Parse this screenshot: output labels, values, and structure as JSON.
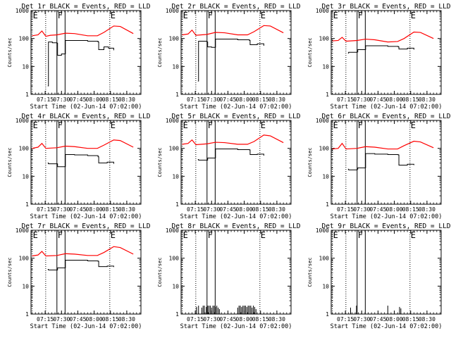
{
  "chart_data": {
    "type": "line",
    "xlabel": "Start Time (02-Jun-14 07:02:00)",
    "ylabel": "Counts/sec",
    "x_tick_labels": [
      "07:15",
      "07:30",
      "07:45",
      "08:00",
      "08:15",
      "08:30"
    ],
    "x_tick_minutes": [
      7.25,
      7.5,
      7.75,
      8.0,
      8.25,
      8.5
    ],
    "x_range_hours": [
      7.033,
      8.717
    ],
    "y_scale": "log",
    "ylim": [
      1,
      1000
    ],
    "y_tick_labels": [
      "1",
      "10",
      "100",
      "1000"
    ],
    "y_tick_values": [
      1,
      10,
      100,
      1000
    ],
    "colors": {
      "events": "#000000",
      "lld": "#ff0000",
      "axis": "#000000"
    },
    "marker_lines": [
      {
        "label": "E",
        "x": 7.05,
        "style": "dotted"
      },
      {
        "label": "",
        "x": 7.258,
        "style": "dotted"
      },
      {
        "label": "F",
        "x": 7.43,
        "style": "solid"
      },
      {
        "label": "",
        "x": 7.555,
        "style": "solid"
      },
      {
        "label": "E",
        "x": 8.24,
        "style": "dotted"
      }
    ],
    "panels": [
      {
        "title": "Det 1r BLACK = Events, RED = LLD",
        "events": {
          "x": [
            7.29,
            7.3,
            7.33,
            7.36,
            7.4,
            7.43,
            7.44,
            7.5,
            7.56,
            7.7,
            7.9,
            8.06,
            8.07,
            8.15,
            8.22,
            8.3
          ],
          "y": [
            2,
            75,
            75,
            70,
            70,
            68,
            25,
            28,
            85,
            85,
            80,
            75,
            40,
            50,
            45,
            38
          ]
        },
        "lld": {
          "x": [
            7.05,
            7.14,
            7.2,
            7.26,
            7.33,
            7.43,
            7.56,
            7.7,
            7.9,
            8.05,
            8.15,
            8.3,
            8.4,
            8.6
          ],
          "y": [
            125,
            135,
            185,
            120,
            130,
            135,
            155,
            150,
            125,
            125,
            165,
            280,
            270,
            150
          ]
        }
      },
      {
        "title": "Det 2r BLACK = Events, RED = LLD",
        "events": {
          "x": [
            7.29,
            7.3,
            7.36,
            7.43,
            7.44,
            7.5,
            7.56,
            7.7,
            7.9,
            8.08,
            8.09,
            8.2,
            8.3
          ],
          "y": [
            3,
            80,
            80,
            75,
            50,
            48,
            95,
            95,
            90,
            85,
            60,
            65,
            55
          ]
        },
        "lld": {
          "x": [
            7.05,
            7.14,
            7.2,
            7.26,
            7.43,
            7.56,
            7.7,
            7.9,
            8.05,
            8.15,
            8.3,
            8.4,
            8.6
          ],
          "y": [
            135,
            145,
            200,
            130,
            140,
            165,
            160,
            135,
            135,
            175,
            290,
            280,
            160
          ]
        }
      },
      {
        "title": "Det 3r BLACK = Events, RED = LLD",
        "events": {
          "x": [
            7.29,
            7.3,
            7.43,
            7.44,
            7.56,
            7.7,
            7.9,
            8.06,
            8.07,
            8.2,
            8.3
          ],
          "y": [
            30,
            32,
            33,
            40,
            55,
            55,
            52,
            50,
            42,
            45,
            40
          ]
        },
        "lld": {
          "x": [
            7.05,
            7.14,
            7.2,
            7.26,
            7.43,
            7.56,
            7.7,
            7.9,
            8.05,
            8.15,
            8.3,
            8.4,
            8.6
          ],
          "y": [
            82,
            85,
            110,
            80,
            85,
            95,
            90,
            75,
            78,
            100,
            170,
            165,
            100
          ]
        }
      },
      {
        "title": "Det 4r BLACK = Events, RED = LLD",
        "events": {
          "x": [
            7.29,
            7.3,
            7.43,
            7.44,
            7.56,
            7.7,
            7.9,
            8.06,
            8.07,
            8.2,
            8.3
          ],
          "y": [
            30,
            28,
            28,
            22,
            60,
            58,
            55,
            50,
            30,
            32,
            28
          ]
        },
        "lld": {
          "x": [
            7.05,
            7.14,
            7.2,
            7.26,
            7.43,
            7.56,
            7.7,
            7.9,
            8.05,
            8.15,
            8.3,
            8.4,
            8.6
          ],
          "y": [
            100,
            110,
            150,
            100,
            105,
            120,
            115,
            100,
            100,
            130,
            200,
            190,
            110
          ]
        }
      },
      {
        "title": "Det 5r BLACK = Events, RED = LLD",
        "events": {
          "x": [
            7.29,
            7.3,
            7.43,
            7.44,
            7.56,
            7.7,
            7.9,
            8.08,
            8.09,
            8.2,
            8.3
          ],
          "y": [
            40,
            38,
            38,
            45,
            95,
            95,
            90,
            88,
            60,
            62,
            55
          ]
        },
        "lld": {
          "x": [
            7.05,
            7.14,
            7.2,
            7.26,
            7.43,
            7.56,
            7.7,
            7.9,
            8.05,
            8.15,
            8.3,
            8.4,
            8.6
          ],
          "y": [
            140,
            150,
            200,
            135,
            145,
            165,
            160,
            140,
            140,
            175,
            300,
            280,
            160
          ]
        }
      },
      {
        "title": "Det 6r BLACK = Events, RED = LLD",
        "events": {
          "x": [
            7.29,
            7.3,
            7.43,
            7.44,
            7.56,
            7.7,
            7.9,
            8.06,
            8.07,
            8.2,
            8.3
          ],
          "y": [
            18,
            17,
            18,
            20,
            65,
            62,
            60,
            58,
            25,
            27,
            25
          ]
        },
        "lld": {
          "x": [
            7.05,
            7.14,
            7.2,
            7.26,
            7.43,
            7.56,
            7.7,
            7.9,
            8.05,
            8.15,
            8.3,
            8.4,
            8.6
          ],
          "y": [
            95,
            100,
            150,
            95,
            100,
            115,
            110,
            95,
            95,
            125,
            180,
            170,
            105
          ]
        }
      },
      {
        "title": "Det 7r BLACK = Events, RED = LLD",
        "events": {
          "x": [
            7.29,
            7.3,
            7.43,
            7.44,
            7.56,
            7.7,
            7.9,
            8.06,
            8.07,
            8.2,
            8.3
          ],
          "y": [
            40,
            38,
            38,
            45,
            85,
            85,
            80,
            78,
            50,
            52,
            48
          ]
        },
        "lld": {
          "x": [
            7.05,
            7.14,
            7.2,
            7.26,
            7.43,
            7.56,
            7.7,
            7.9,
            8.05,
            8.15,
            8.3,
            8.4,
            8.6
          ],
          "y": [
            120,
            130,
            175,
            120,
            125,
            145,
            140,
            125,
            125,
            160,
            260,
            240,
            140
          ]
        }
      },
      {
        "title": "Det 8r BLACK = Events, RED = LLD",
        "events_spikes": {
          "x": [
            7.27,
            7.3,
            7.35,
            7.37,
            7.39,
            7.42,
            7.44,
            7.46,
            7.48,
            7.5,
            7.52,
            7.54,
            7.56,
            7.58,
            7.6,
            7.62,
            7.9,
            7.92,
            7.94,
            7.96,
            7.98,
            8.0,
            8.02,
            8.04,
            8.06,
            8.08,
            8.1,
            8.12,
            8.14,
            8.16,
            8.18
          ],
          "y": [
            1.8,
            2,
            1.7,
            2,
            2,
            1.8,
            2,
            2,
            2,
            1.7,
            2,
            2,
            1.8,
            2,
            1.7,
            1.5,
            1.7,
            2,
            2,
            1.8,
            2,
            2,
            2,
            1.8,
            2,
            2,
            2,
            1.7,
            2,
            1.8,
            1.5
          ]
        },
        "lld": null
      },
      {
        "title": "Det 9r BLACK = Events, RED = LLD",
        "events_spikes": {
          "x": [
            7.33,
            7.42,
            7.9,
            8.08,
            8.1
          ],
          "y": [
            1.7,
            2,
            2,
            1.8,
            1.6
          ]
        },
        "lld": null
      }
    ]
  }
}
